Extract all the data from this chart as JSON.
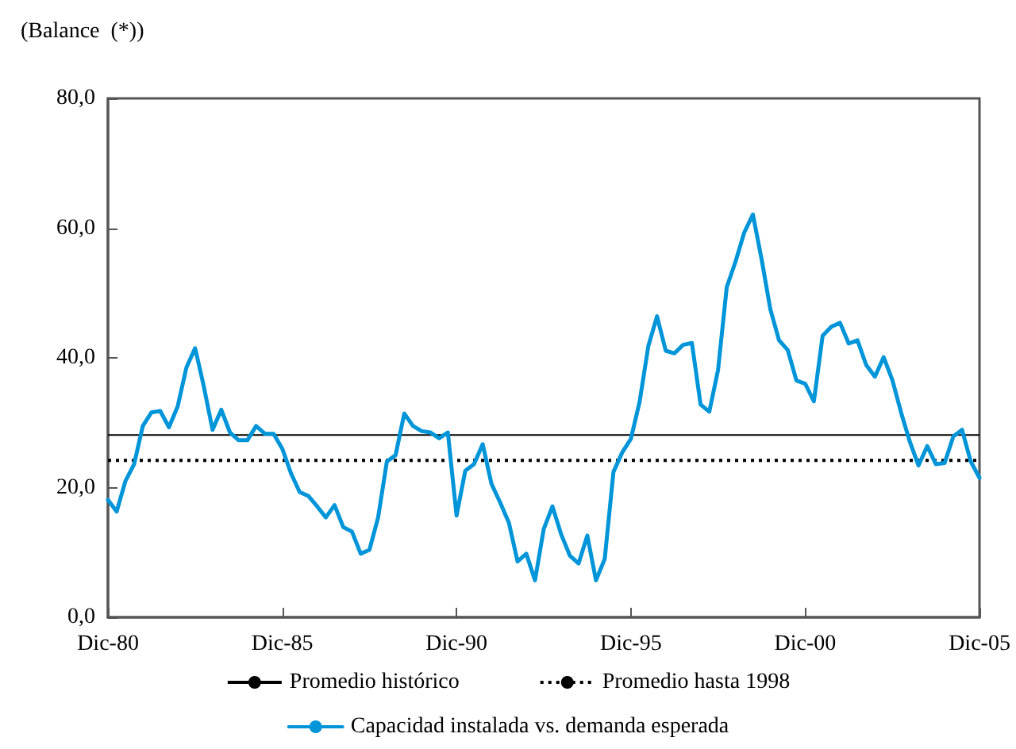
{
  "chart_data": {
    "type": "line",
    "ylabel": "(Balance  (*))",
    "x": [
      "1980-12",
      "1981-03",
      "1981-06",
      "1981-09",
      "1981-12",
      "1982-03",
      "1982-06",
      "1982-09",
      "1982-12",
      "1983-03",
      "1983-06",
      "1983-09",
      "1983-12",
      "1984-03",
      "1984-06",
      "1984-09",
      "1984-12",
      "1985-03",
      "1985-06",
      "1985-09",
      "1985-12",
      "1986-03",
      "1986-06",
      "1986-09",
      "1986-12",
      "1987-03",
      "1987-06",
      "1987-09",
      "1987-12",
      "1988-03",
      "1988-06",
      "1988-09",
      "1988-12",
      "1989-03",
      "1989-06",
      "1989-09",
      "1989-12",
      "1990-03",
      "1990-06",
      "1990-09",
      "1990-12",
      "1991-03",
      "1991-06",
      "1991-09",
      "1991-12",
      "1992-03",
      "1992-06",
      "1992-09",
      "1992-12",
      "1993-03",
      "1993-06",
      "1993-09",
      "1993-12",
      "1994-03",
      "1994-06",
      "1994-09",
      "1994-12",
      "1995-03",
      "1995-06",
      "1995-09",
      "1995-12",
      "1996-03",
      "1996-06",
      "1996-09",
      "1996-12",
      "1997-03",
      "1997-06",
      "1997-09",
      "1997-12",
      "1998-03",
      "1998-06",
      "1998-09",
      "1998-12",
      "1999-03",
      "1999-06",
      "1999-09",
      "1999-12",
      "2000-03",
      "2000-06",
      "2000-09",
      "2000-12",
      "2001-03",
      "2001-06",
      "2001-09",
      "2001-12",
      "2002-03",
      "2002-06",
      "2002-09",
      "2002-12",
      "2003-03",
      "2003-06",
      "2003-09",
      "2003-12",
      "2004-03",
      "2004-06",
      "2004-09",
      "2004-12",
      "2005-03",
      "2005-06",
      "2005-09",
      "2005-12"
    ],
    "series": [
      {
        "name": "Capacidad instalada vs. demanda esperada",
        "color": "#0095d9",
        "values": [
          18.1,
          16.3,
          21.0,
          23.6,
          29.5,
          31.6,
          31.8,
          29.3,
          32.5,
          38.5,
          41.5,
          35.6,
          28.9,
          32.0,
          28.5,
          27.3,
          27.3,
          29.5,
          28.3,
          28.3,
          26.0,
          22.2,
          19.3,
          18.7,
          17.1,
          15.4,
          17.3,
          13.9,
          13.2,
          9.8,
          10.4,
          15.4,
          24.0,
          25.0,
          31.4,
          29.5,
          28.7,
          28.5,
          27.6,
          28.5,
          15.7,
          22.6,
          23.6,
          26.7,
          20.6,
          17.7,
          14.6,
          8.6,
          9.8,
          5.7,
          13.6,
          17.1,
          12.8,
          9.5,
          8.3,
          12.6,
          5.7,
          9.0,
          22.4,
          25.4,
          27.5,
          33.2,
          41.8,
          46.4,
          41.1,
          40.7,
          42.0,
          42.3,
          32.8,
          31.7,
          38.1,
          50.9,
          54.8,
          59.3,
          62.1,
          55.2,
          47.5,
          42.7,
          41.2,
          36.5,
          36.0,
          33.3,
          43.4,
          44.8,
          45.4,
          42.2,
          42.7,
          38.9,
          37.1,
          40.1,
          36.6,
          31.6,
          27.1,
          23.4,
          26.4,
          23.6,
          23.8,
          27.9,
          28.9,
          24.0,
          21.5
        ]
      }
    ],
    "ref_lines": [
      {
        "axis": "y",
        "value": 28.1,
        "label": "Promedio histórico",
        "color": "#000000",
        "line_style": "solid"
      },
      {
        "axis": "y",
        "value": 24.2,
        "label": "Promedio hasta 1998",
        "color": "#000000",
        "line_style": "dotted"
      }
    ],
    "xlim": [
      "1980-12",
      "2005-12"
    ],
    "xticks": [
      {
        "value": "1980-12",
        "label": "Dic-80"
      },
      {
        "value": "1985-12",
        "label": "Dic-85"
      },
      {
        "value": "1990-12",
        "label": "Dic-90"
      },
      {
        "value": "1995-12",
        "label": "Dic-95"
      },
      {
        "value": "2000-12",
        "label": "Dic-00"
      },
      {
        "value": "2005-12",
        "label": "Dic-05"
      }
    ],
    "ylim": [
      0,
      80
    ],
    "yticks": [
      {
        "value": 0,
        "label": "0,0"
      },
      {
        "value": 20,
        "label": "20,0"
      },
      {
        "value": 40,
        "label": "40,0"
      },
      {
        "value": 60,
        "label": "60,0"
      },
      {
        "value": 80,
        "label": "80,0"
      }
    ],
    "grid": false,
    "legend": "bottom",
    "marker": "none",
    "line_style": "solid"
  }
}
